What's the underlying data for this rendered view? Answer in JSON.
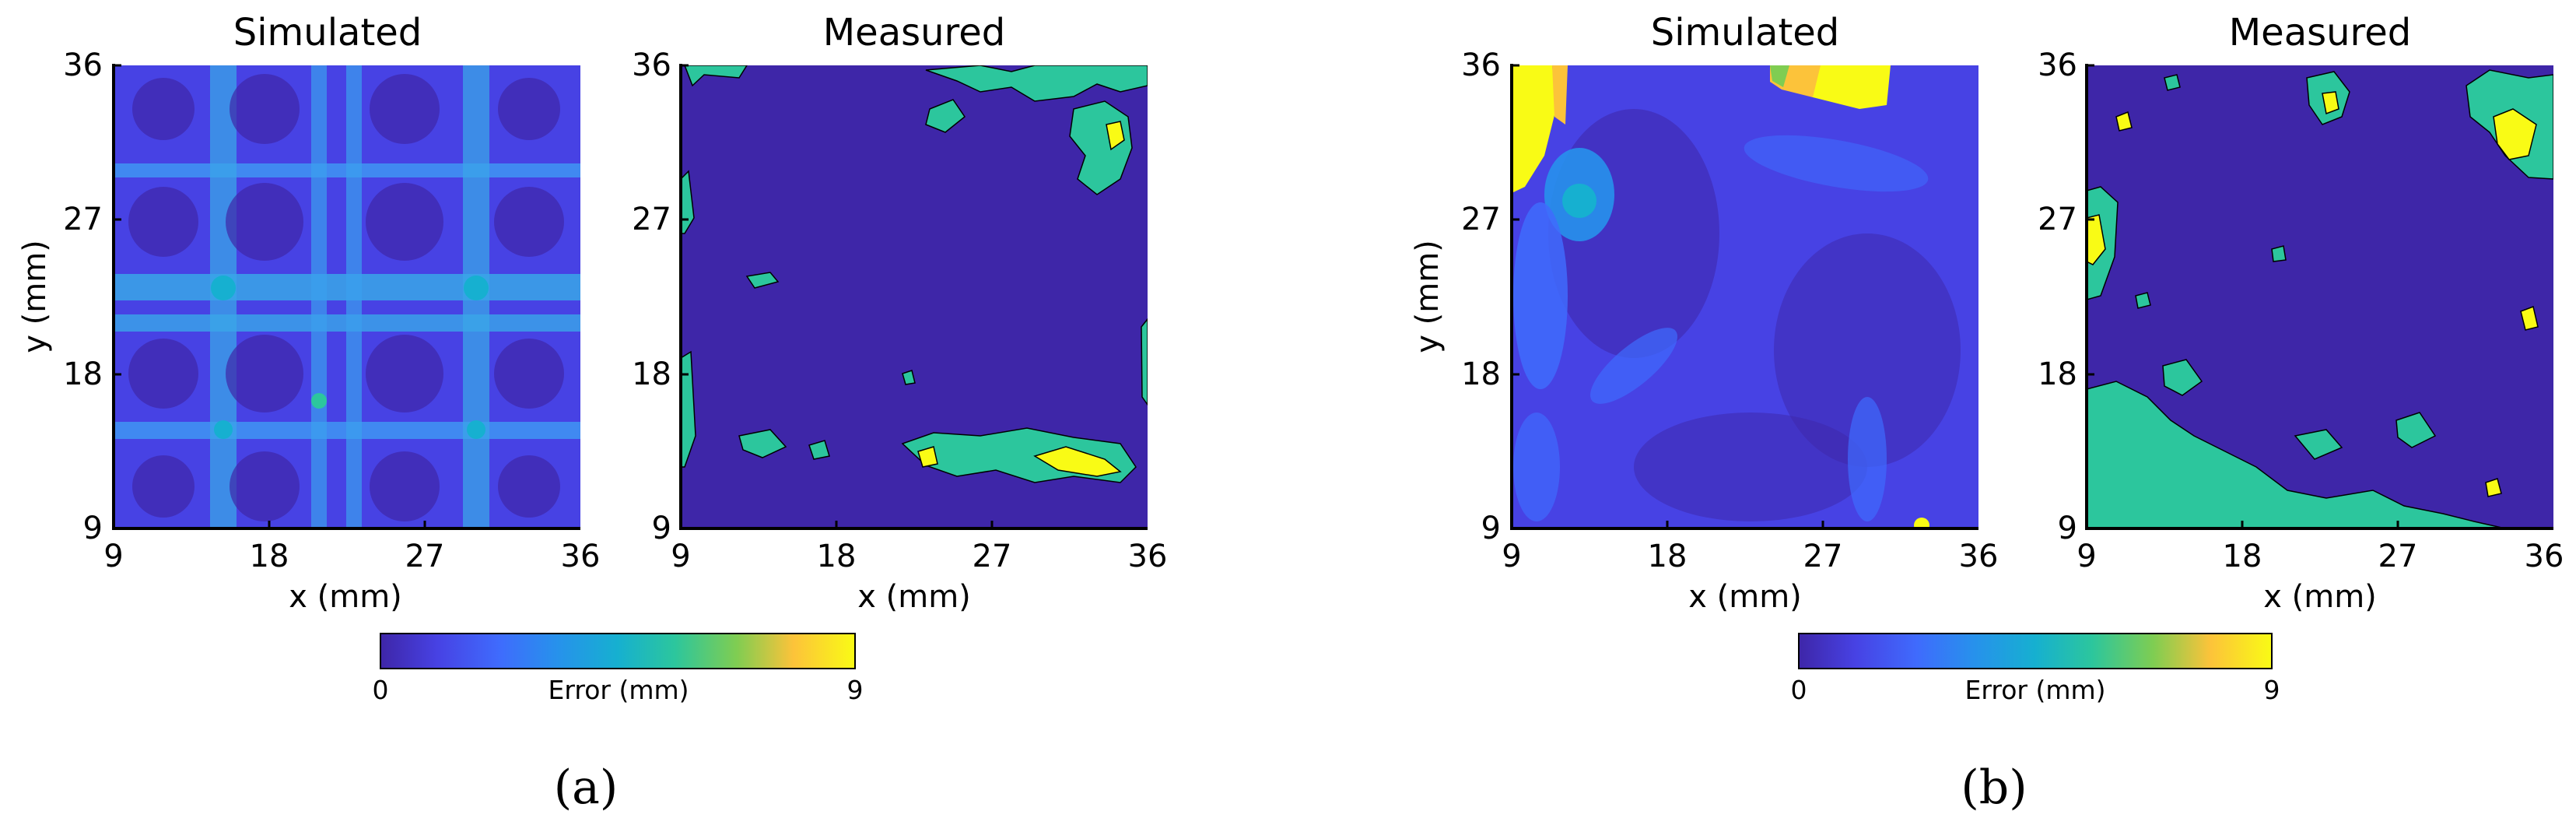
{
  "chart_data": [
    {
      "type": "heatmap",
      "panel": "a",
      "title": "Simulated",
      "xlabel": "x (mm)",
      "ylabel": "y (mm)",
      "xlim": [
        9,
        36
      ],
      "ylim": [
        9,
        36
      ],
      "xticks": [
        "9",
        "18",
        "27",
        "36"
      ],
      "yticks": [
        "9",
        "18",
        "27",
        "36"
      ],
      "description_values": "Grid-patterned error field; low error at cell centres near x=13,18,27,33 and y=13,18,27,33; higher error (~4 mm) along lines x,y≈15,21,24,30",
      "color_range": [
        0,
        9
      ]
    },
    {
      "type": "heatmap",
      "panel": "a",
      "title": "Measured",
      "xlabel": "x (mm)",
      "ylabel": "",
      "xlim": [
        9,
        36
      ],
      "ylim": [
        9,
        36
      ],
      "xticks": [
        "9",
        "18",
        "27",
        "36"
      ],
      "yticks": [
        "9",
        "18",
        "27",
        "36"
      ],
      "description_values": "Mostly 0 mm; patches of ~4-9 mm error along bottom (y≈11-14, x≈24-35) and top-right (y≈30-36, x≈25-35)",
      "color_range": [
        0,
        9
      ]
    },
    {
      "type": "heatmap",
      "panel": "b",
      "title": "Simulated",
      "xlabel": "x (mm)",
      "ylabel": "y (mm)",
      "xlim": [
        9,
        36
      ],
      "ylim": [
        9,
        36
      ],
      "xticks": [
        "9",
        "18",
        "27",
        "36"
      ],
      "yticks": [
        "9",
        "18",
        "27",
        "36"
      ],
      "description_values": "Mostly 0-2 mm; high error (~9 mm) at top-left corner (x≈9-10, y≈29-36) and top centre (x≈24-30, y≈34-36)",
      "color_range": [
        0,
        9
      ]
    },
    {
      "type": "heatmap",
      "panel": "b",
      "title": "Measured",
      "xlabel": "x (mm)",
      "ylabel": "",
      "xlim": [
        9,
        36
      ],
      "ylim": [
        9,
        36
      ],
      "xticks": [
        "9",
        "18",
        "27",
        "36"
      ],
      "yticks": [
        "9",
        "18",
        "27",
        "36"
      ],
      "description_values": "Mostly 0 mm; patches ~4 mm at bottom-left (x≈9-18, y≈9-17), left edge (y≈24-28) and top-right (x≈33-36, y≈30-35) with 9 mm spots",
      "color_range": [
        0,
        9
      ]
    }
  ],
  "colorbars": [
    {
      "min_label": "0",
      "max_label": "9",
      "label": "Error (mm)"
    },
    {
      "min_label": "0",
      "max_label": "9",
      "label": "Error (mm)"
    }
  ],
  "panel_labels": [
    "(a)",
    "(b)"
  ],
  "colors": {
    "c0": "#3e26a8",
    "c1": "#4742e4",
    "c2": "#3f6bfd",
    "c3": "#2791ec",
    "c4": "#16b0d0",
    "c5": "#2cc69d",
    "c6": "#7fcd52",
    "c7": "#d8bb31",
    "c8": "#fcc33a",
    "c9": "#f9fb15"
  }
}
